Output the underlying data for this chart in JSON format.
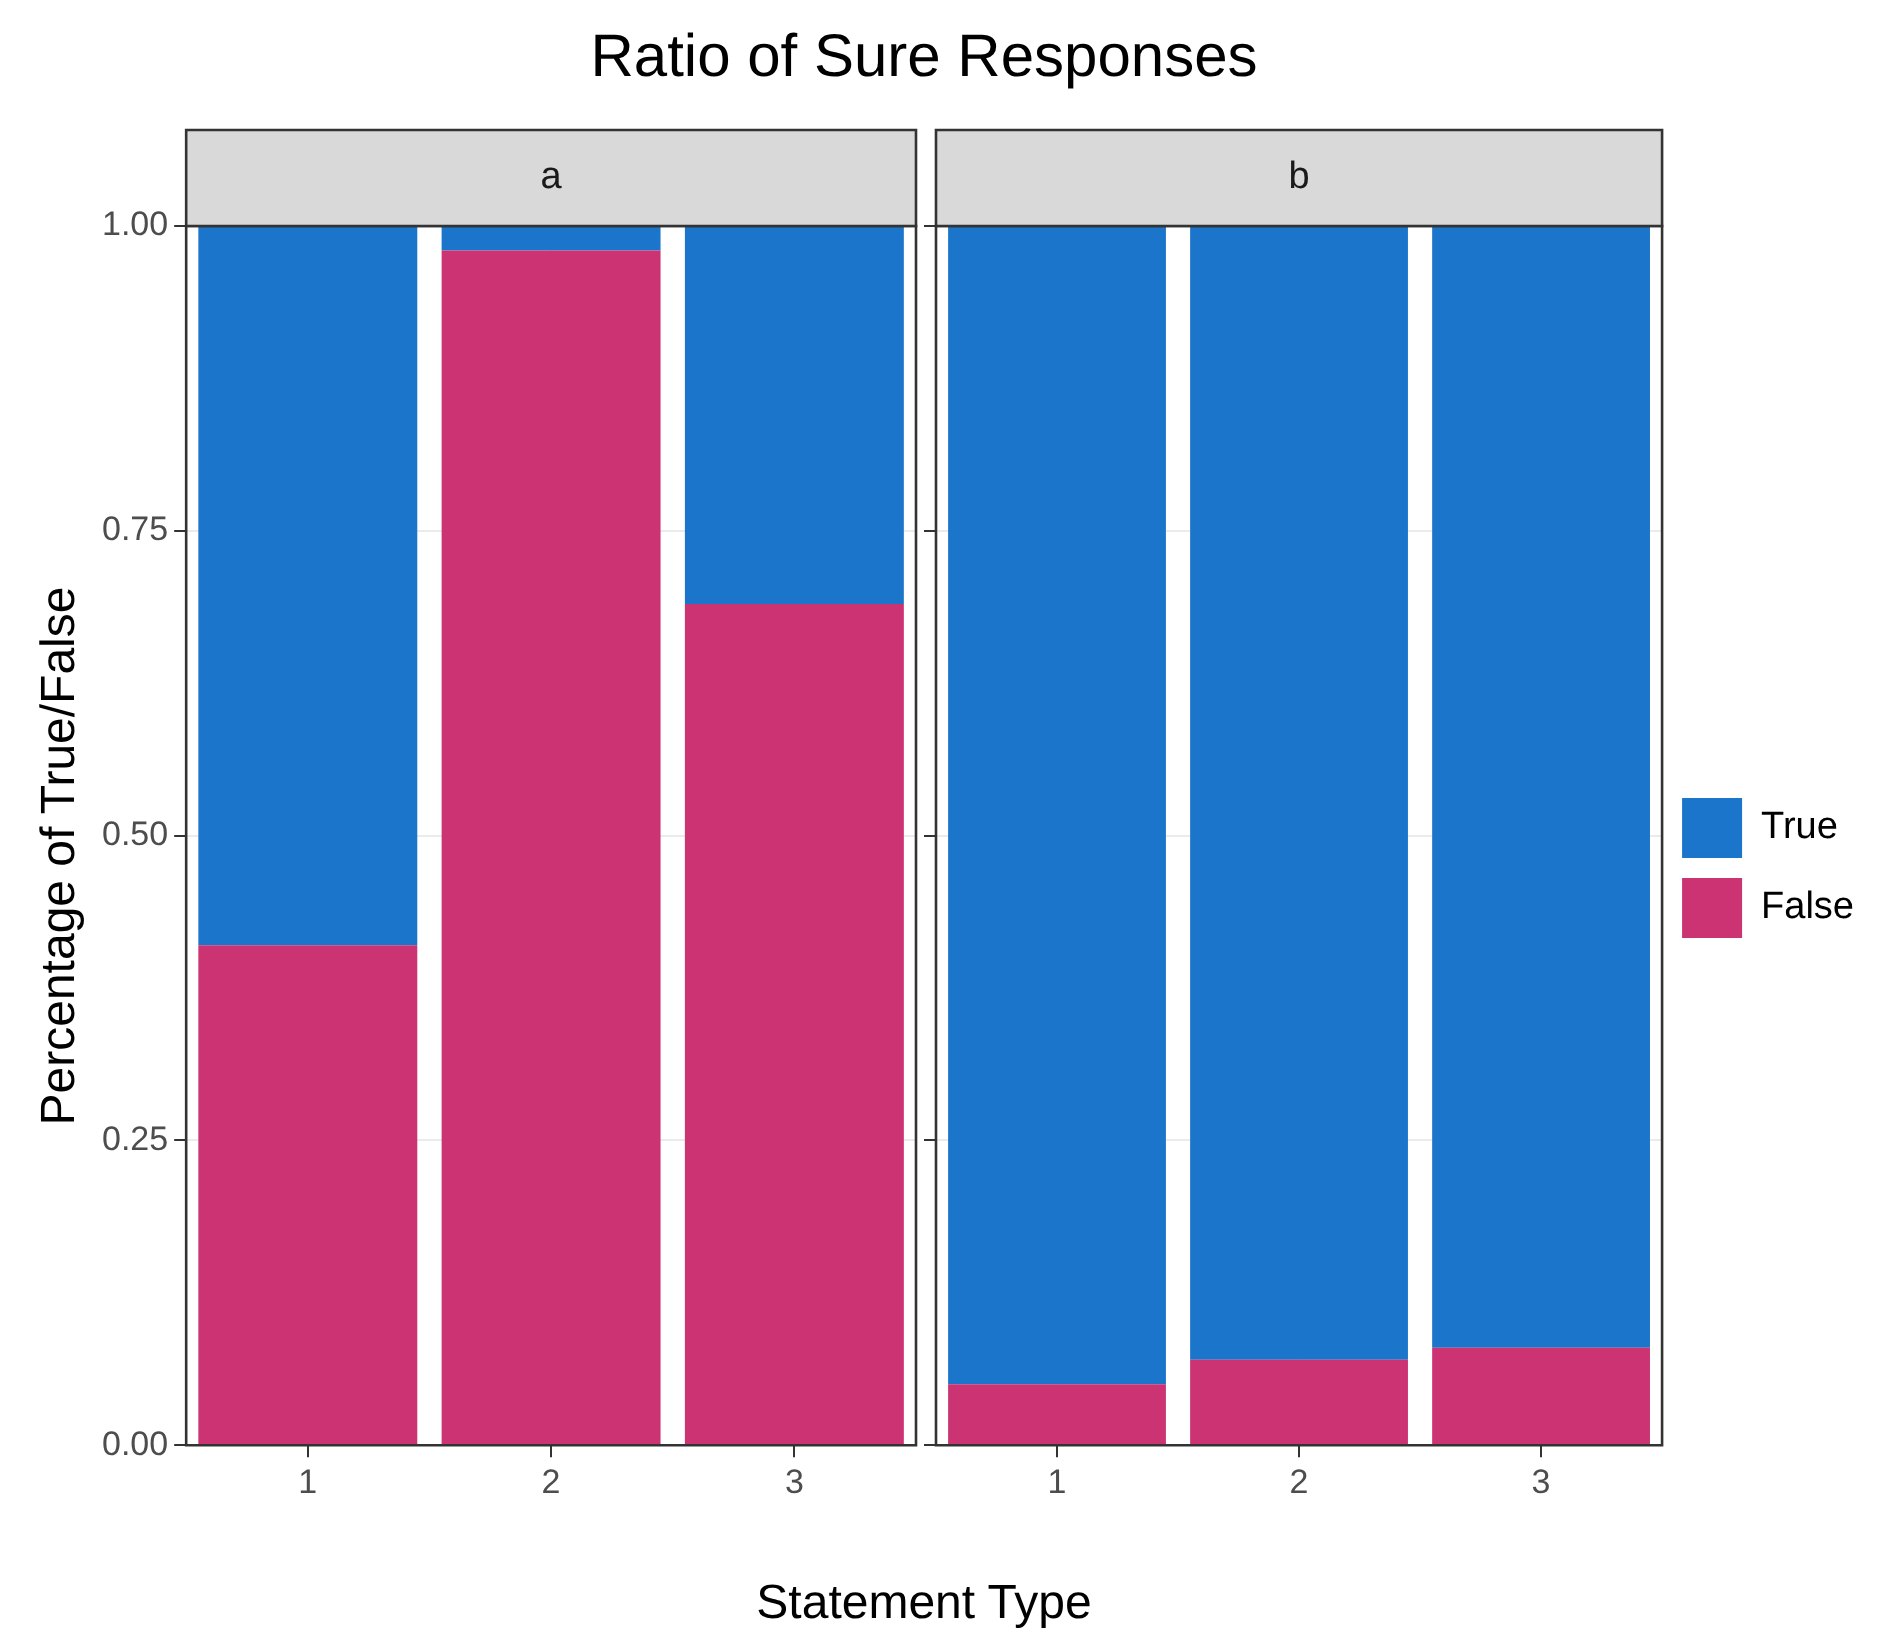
{
  "chart_data": [
    {
      "type": "bar",
      "title": "Ratio of Sure Responses",
      "subtitle": "a",
      "xlabel": "Statement Type",
      "ylabel": "Percentage of True/False",
      "categories": [
        "1",
        "2",
        "3"
      ],
      "stacked": true,
      "series": [
        {
          "color": "#cc3373",
          "values": [
            0.41,
            0.98,
            0.69
          ]
        },
        {
          "color": "#1b75cb",
          "values": [
            0.59,
            0.02,
            0.31
          ]
        }
      ],
      "ylim": [
        0,
        1
      ],
      "yticks": [
        {
          "value": 0,
          "label": "0.00"
        },
        {
          "value": 0.25,
          "label": "0.25"
        },
        {
          "value": 0.5,
          "label": "0.50"
        },
        {
          "value": 0.75,
          "label": "0.75"
        },
        {
          "value": 1,
          "label": "1.00"
        }
      ],
      "grid": true,
      "legend": false
    },
    {
      "type": "bar",
      "subtitle": "b",
      "categories": [
        "1",
        "2",
        "3"
      ],
      "stacked": true,
      "series": [
        {
          "name": "False",
          "color": "#cc3373",
          "values": [
            0.05,
            0.07,
            0.08
          ]
        },
        {
          "name": "True",
          "color": "#1b75cb",
          "values": [
            0.95,
            0.93,
            0.92
          ]
        }
      ],
      "ylim": [
        0,
        1
      ],
      "yticks": [
        {
          "value": 0,
          "label": null
        },
        {
          "value": 0.25,
          "label": null
        },
        {
          "value": 0.5,
          "label": null
        },
        {
          "value": 0.75,
          "label": null
        },
        {
          "value": 1,
          "label": null
        }
      ],
      "grid": true,
      "legend": "right",
      "tick_labels": "x"
    }
  ]
}
